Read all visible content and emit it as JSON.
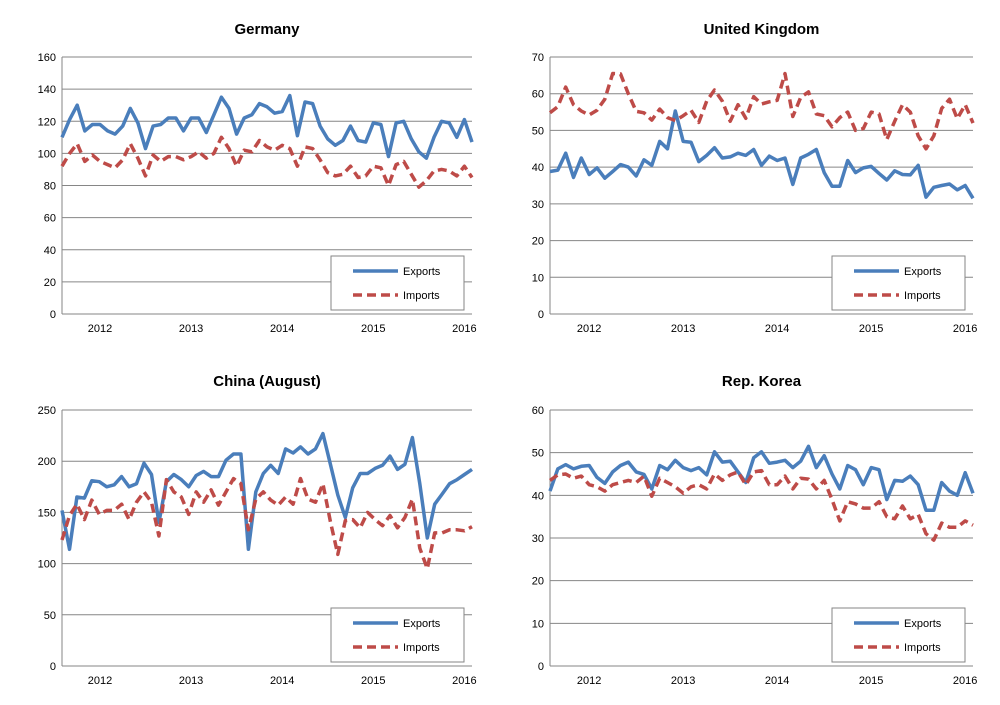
{
  "chart_data": [
    {
      "type": "line",
      "title": "Germany",
      "xlabel": "",
      "ylabel": "",
      "ylim": [
        0,
        160
      ],
      "yticks": [
        0,
        20,
        40,
        60,
        80,
        100,
        120,
        140,
        160
      ],
      "xticks": [
        "2012",
        "2013",
        "2014",
        "2015",
        "2016"
      ],
      "x_range": [
        "2011-08",
        "2016-02"
      ],
      "grid": true,
      "legend": "bottom-right",
      "series": [
        {
          "name": "Exports",
          "color": "#4a7ebb",
          "style": "solid",
          "values": [
            110,
            121,
            130,
            114,
            118,
            118,
            114,
            112,
            117,
            128,
            119,
            103,
            117,
            118,
            122,
            122,
            114,
            122,
            122,
            113,
            124,
            135,
            128,
            112,
            122,
            124,
            131,
            129,
            125,
            126,
            136,
            111,
            132,
            131,
            117,
            109,
            105,
            108,
            117,
            108,
            107,
            119,
            118,
            98,
            119,
            120,
            109,
            101,
            97,
            110,
            120,
            119,
            110,
            121,
            107
          ]
        },
        {
          "name": "Imports",
          "color": "#be4b48",
          "style": "dashed",
          "values": [
            92,
            100,
            106,
            95,
            99,
            95,
            93,
            91,
            96,
            106,
            97,
            86,
            99,
            95,
            98,
            98,
            96,
            98,
            101,
            97,
            100,
            110,
            103,
            92,
            102,
            101,
            108,
            104,
            102,
            105,
            103,
            92,
            104,
            103,
            96,
            88,
            86,
            87,
            92,
            85,
            86,
            92,
            91,
            80,
            93,
            95,
            87,
            79,
            83,
            89,
            90,
            89,
            86,
            92,
            85
          ]
        }
      ]
    },
    {
      "type": "line",
      "title": "United Kingdom",
      "xlabel": "",
      "ylabel": "",
      "ylim": [
        0,
        70
      ],
      "yticks": [
        0,
        10,
        20,
        30,
        40,
        50,
        60,
        70
      ],
      "xticks": [
        "2012",
        "2013",
        "2014",
        "2015",
        "2016"
      ],
      "x_range": [
        "2011-08",
        "2016-02"
      ],
      "grid": true,
      "legend": "bottom-right",
      "series": [
        {
          "name": "Exports",
          "color": "#4a7ebb",
          "style": "solid",
          "values": [
            38.8,
            39.2,
            43.8,
            37.2,
            42.5,
            38,
            39.8,
            37,
            38.8,
            40.7,
            40,
            37.6,
            42,
            40.5,
            47,
            45,
            55.3,
            47,
            46.8,
            41.5,
            43.2,
            45.3,
            42.5,
            42.8,
            43.8,
            43.2,
            44.8,
            40.5,
            43,
            41.8,
            42.5,
            35.3,
            42.5,
            43.5,
            44.8,
            38.5,
            34.8,
            34.8,
            41.8,
            38.5,
            39.8,
            40.2,
            38.3,
            36.5,
            39,
            38,
            37.9,
            40.5,
            31.8,
            34.5,
            35,
            35.4,
            33.8,
            35,
            31.5
          ]
        },
        {
          "name": "Imports",
          "color": "#be4b48",
          "style": "dashed",
          "values": [
            54.8,
            56.5,
            61.8,
            57,
            55.3,
            54.2,
            55.5,
            58.5,
            65.5,
            65.4,
            60,
            55.2,
            54.8,
            52.8,
            55.8,
            53.5,
            52.7,
            54,
            55.5,
            52.2,
            58,
            61,
            58,
            52.5,
            57,
            53.3,
            59.2,
            57.2,
            57.8,
            58.2,
            65.5,
            53.8,
            59,
            60.5,
            54.5,
            54,
            51,
            53.5,
            55,
            50,
            50.5,
            55,
            54.5,
            47.5,
            52.5,
            57,
            55,
            48.5,
            45,
            48.5,
            56,
            58.5,
            53.2,
            57,
            52
          ]
        }
      ]
    },
    {
      "type": "line",
      "title": "China (August)",
      "xlabel": "",
      "ylabel": "",
      "ylim": [
        0,
        250
      ],
      "yticks": [
        0,
        50,
        100,
        150,
        200,
        250
      ],
      "xticks": [
        "2012",
        "2013",
        "2014",
        "2015",
        "2016"
      ],
      "x_range": [
        "2011-08",
        "2016-02"
      ],
      "grid": true,
      "legend": "bottom-right",
      "series": [
        {
          "name": "Exports",
          "color": "#4a7ebb",
          "style": "solid",
          "values": [
            152,
            114,
            165,
            164,
            181,
            180,
            175,
            177,
            185,
            175,
            178,
            198,
            187,
            140,
            180,
            187,
            182,
            175,
            186,
            190,
            185,
            185,
            201,
            207,
            207,
            114,
            170,
            188,
            196,
            188,
            212,
            208,
            214,
            207,
            212,
            227,
            197,
            167,
            145,
            174,
            188,
            188,
            193,
            196,
            205,
            192,
            197,
            223,
            178,
            125,
            158,
            168,
            178,
            182,
            187,
            192
          ]
        },
        {
          "name": "Imports",
          "color": "#be4b48",
          "style": "dashed",
          "values": [
            123,
            147,
            158,
            143,
            162,
            148,
            152,
            152,
            158,
            143,
            160,
            170,
            160,
            127,
            182,
            170,
            165,
            148,
            170,
            160,
            172,
            157,
            170,
            183,
            178,
            133,
            163,
            170,
            162,
            157,
            165,
            158,
            183,
            163,
            160,
            178,
            141,
            109,
            142,
            143,
            135,
            150,
            143,
            137,
            147,
            135,
            145,
            163,
            115,
            95,
            130,
            130,
            133,
            133,
            132,
            136
          ]
        }
      ]
    },
    {
      "type": "line",
      "title": "Rep. Korea",
      "xlabel": "",
      "ylabel": "",
      "ylim": [
        0,
        60
      ],
      "yticks": [
        0,
        10,
        20,
        30,
        40,
        50,
        60
      ],
      "xticks": [
        "2012",
        "2013",
        "2014",
        "2015",
        "2016"
      ],
      "x_range": [
        "2011-08",
        "2016-02"
      ],
      "grid": true,
      "legend": "bottom-right",
      "series": [
        {
          "name": "Exports",
          "color": "#4a7ebb",
          "style": "solid",
          "values": [
            41,
            46.2,
            47.2,
            46.2,
            46.8,
            47,
            44.2,
            42.8,
            45.5,
            47,
            47.8,
            45.5,
            44.9,
            41.5,
            47,
            46,
            48.2,
            46.5,
            45.8,
            46.5,
            44.8,
            50.2,
            47.8,
            48,
            45.5,
            43,
            48.8,
            50.2,
            47.5,
            47.8,
            48.2,
            46.5,
            48,
            51.5,
            46.5,
            49.3,
            45,
            41.5,
            47,
            46,
            42.5,
            46.5,
            46,
            39,
            43.5,
            43.3,
            44.5,
            42.5,
            36.5,
            36.5,
            43,
            41,
            40,
            45.3,
            40.5
          ]
        },
        {
          "name": "Imports",
          "color": "#be4b48",
          "style": "dashed",
          "values": [
            43.5,
            44.8,
            45,
            44,
            44.5,
            42.5,
            42,
            41,
            42.5,
            43,
            43.5,
            43,
            44.5,
            39.8,
            44,
            43,
            42,
            40.5,
            42,
            42.5,
            41.5,
            45,
            43.5,
            44.8,
            45.5,
            42.5,
            45.5,
            45.8,
            42.5,
            42.5,
            44.5,
            41.5,
            44,
            43.8,
            41.5,
            43.5,
            39,
            34,
            38.5,
            38,
            37,
            37,
            38.5,
            35,
            34.5,
            37.5,
            34.5,
            35.5,
            31,
            29.5,
            33.5,
            32.5,
            32.5,
            34,
            33
          ]
        }
      ]
    }
  ]
}
